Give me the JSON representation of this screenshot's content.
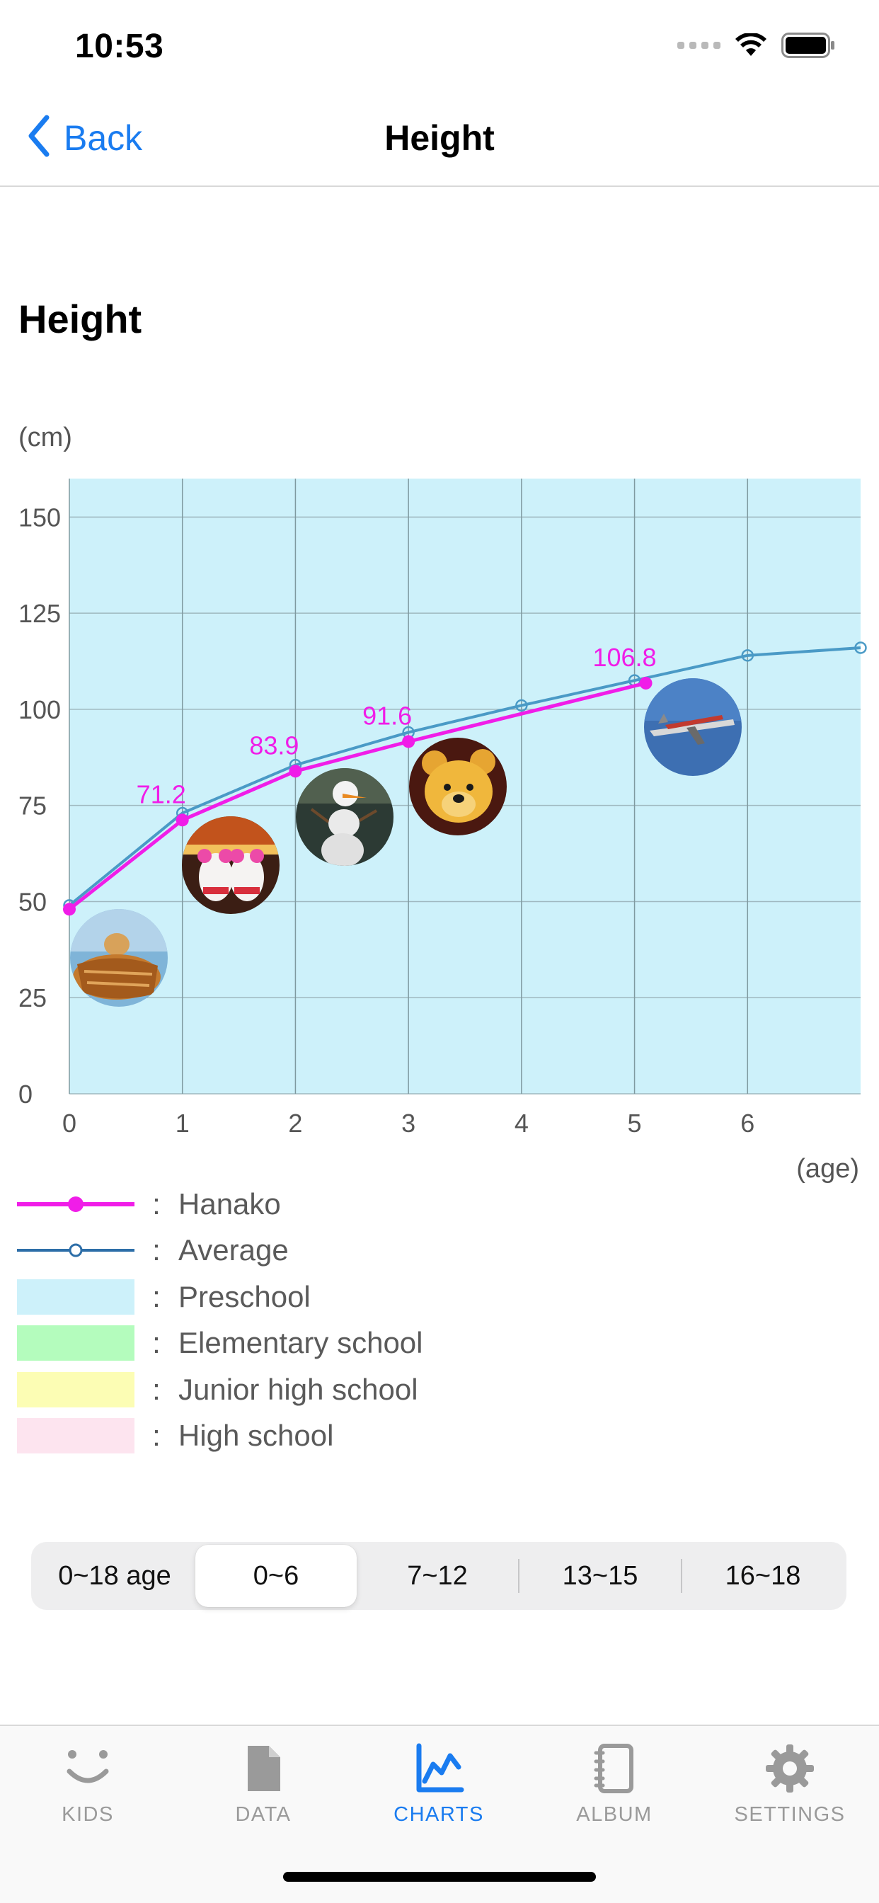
{
  "status": {
    "time": "10:53"
  },
  "nav": {
    "back_label": "Back",
    "title": "Height"
  },
  "section_title": "Height",
  "chart_data": {
    "type": "line",
    "y_unit_label": "(cm)",
    "x_unit_label": "(age)",
    "xlim": [
      0,
      7
    ],
    "ylim": [
      0,
      160
    ],
    "x_ticks": [
      0,
      1,
      2,
      3,
      4,
      5,
      6
    ],
    "y_ticks": [
      0,
      25,
      50,
      75,
      100,
      125,
      150
    ],
    "background_band": {
      "name": "Preschool",
      "color": "#cdf1fa"
    },
    "series": [
      {
        "name": "Hanako",
        "color": "#f01de8",
        "marker": "filled",
        "x": [
          0,
          1,
          2,
          3,
          5.1
        ],
        "y": [
          48,
          71.2,
          83.9,
          91.6,
          106.8
        ],
        "data_labels": [
          "",
          "71.2",
          "83.9",
          "91.6",
          "106.8"
        ]
      },
      {
        "name": "Average",
        "color": "#4a9ac6",
        "marker": "open",
        "x": [
          0,
          1,
          2,
          3,
          4,
          5,
          6,
          7
        ],
        "y": [
          49,
          73,
          85.5,
          94,
          101,
          107.5,
          114,
          116
        ]
      }
    ]
  },
  "legend": [
    {
      "label": "Hanako",
      "kind": "line-filled",
      "color": "#f01de8"
    },
    {
      "label": "Average",
      "kind": "line-open",
      "color": "#2d6ea8"
    },
    {
      "label": "Preschool",
      "kind": "box",
      "color": "#cdf1fa"
    },
    {
      "label": "Elementary school",
      "kind": "box",
      "color": "#b4fcbd"
    },
    {
      "label": "Junior high school",
      "kind": "box",
      "color": "#fcfdb4"
    },
    {
      "label": "High school",
      "kind": "box",
      "color": "#fde4ef"
    }
  ],
  "legend_colon": ":",
  "range_selector": {
    "options": [
      "0~18 age",
      "0~6",
      "7~12",
      "13~15",
      "16~18"
    ],
    "selected": "0~6"
  },
  "tabs": [
    {
      "label": "KIDS",
      "icon": "smile-face-icon"
    },
    {
      "label": "DATA",
      "icon": "document-icon"
    },
    {
      "label": "CHARTS",
      "icon": "chart-icon",
      "active": true
    },
    {
      "label": "ALBUM",
      "icon": "album-icon"
    },
    {
      "label": "SETTINGS",
      "icon": "gear-icon"
    }
  ]
}
